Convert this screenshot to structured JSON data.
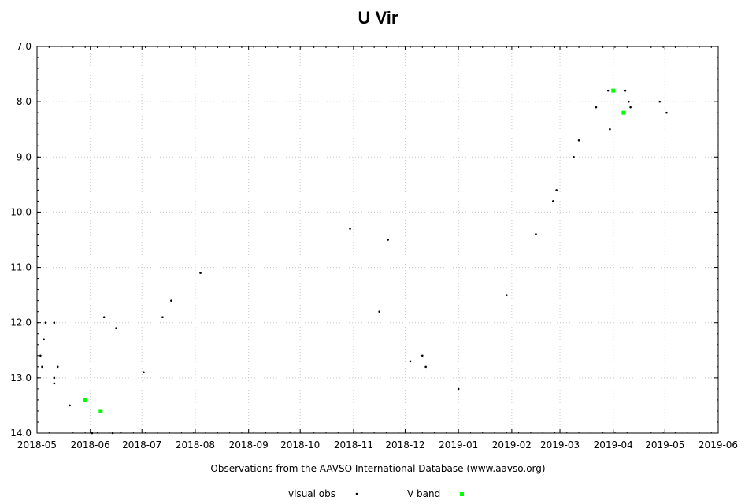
{
  "chart_data": {
    "type": "scatter",
    "title": "U Vir",
    "xlabel": "Observations from the AAVSO International Database (www.aavso.org)",
    "ylabel": "",
    "x_units": "days since 2018-05-01",
    "xlim": [
      0,
      396
    ],
    "ylim": [
      7.0,
      14.0
    ],
    "y_inverted": true,
    "grid": true,
    "x_ticks": [
      {
        "label": "2018-05",
        "day": 0
      },
      {
        "label": "2018-06",
        "day": 31
      },
      {
        "label": "2018-07",
        "day": 61
      },
      {
        "label": "2018-08",
        "day": 92
      },
      {
        "label": "2018-09",
        "day": 123
      },
      {
        "label": "2018-10",
        "day": 153
      },
      {
        "label": "2018-11",
        "day": 184
      },
      {
        "label": "2018-12",
        "day": 214
      },
      {
        "label": "2019-01",
        "day": 245
      },
      {
        "label": "2019-02",
        "day": 276
      },
      {
        "label": "2019-03",
        "day": 304
      },
      {
        "label": "2019-04",
        "day": 335
      },
      {
        "label": "2019-05",
        "day": 365
      },
      {
        "label": "2019-06",
        "day": 396
      }
    ],
    "y_ticks": [
      "7.0",
      "8.0",
      "9.0",
      "10.0",
      "11.0",
      "12.0",
      "13.0",
      "14.0"
    ],
    "legend_position": "bottom",
    "series": [
      {
        "name": "visual obs",
        "color": "#000000",
        "marker": "dot",
        "points": [
          [
            2,
            12.6
          ],
          [
            3,
            12.8
          ],
          [
            4,
            12.3
          ],
          [
            5,
            12.0
          ],
          [
            10,
            12.0
          ],
          [
            10,
            13.0
          ],
          [
            10,
            13.1
          ],
          [
            12,
            12.8
          ],
          [
            19,
            13.5
          ],
          [
            32,
            14.0
          ],
          [
            39,
            11.9
          ],
          [
            44,
            14.0
          ],
          [
            46,
            12.1
          ],
          [
            62,
            12.9
          ],
          [
            73,
            11.9
          ],
          [
            78,
            11.6
          ],
          [
            95,
            11.1
          ],
          [
            182,
            10.3
          ],
          [
            199,
            11.8
          ],
          [
            204,
            10.5
          ],
          [
            217,
            12.7
          ],
          [
            224,
            12.6
          ],
          [
            226,
            12.8
          ],
          [
            245,
            13.2
          ],
          [
            273,
            11.5
          ],
          [
            290,
            10.4
          ],
          [
            300,
            9.8
          ],
          [
            302,
            9.6
          ],
          [
            312,
            9.0
          ],
          [
            315,
            8.7
          ],
          [
            325,
            8.1
          ],
          [
            332,
            7.8
          ],
          [
            333,
            8.5
          ],
          [
            342,
            7.8
          ],
          [
            344,
            8.0
          ],
          [
            345,
            8.1
          ],
          [
            362,
            8.0
          ],
          [
            366,
            8.2
          ]
        ]
      },
      {
        "name": "V band",
        "color": "#00ff00",
        "marker": "square",
        "points": [
          [
            28,
            13.4
          ],
          [
            37,
            13.6
          ],
          [
            335,
            7.8
          ],
          [
            341,
            8.2
          ]
        ]
      }
    ]
  }
}
